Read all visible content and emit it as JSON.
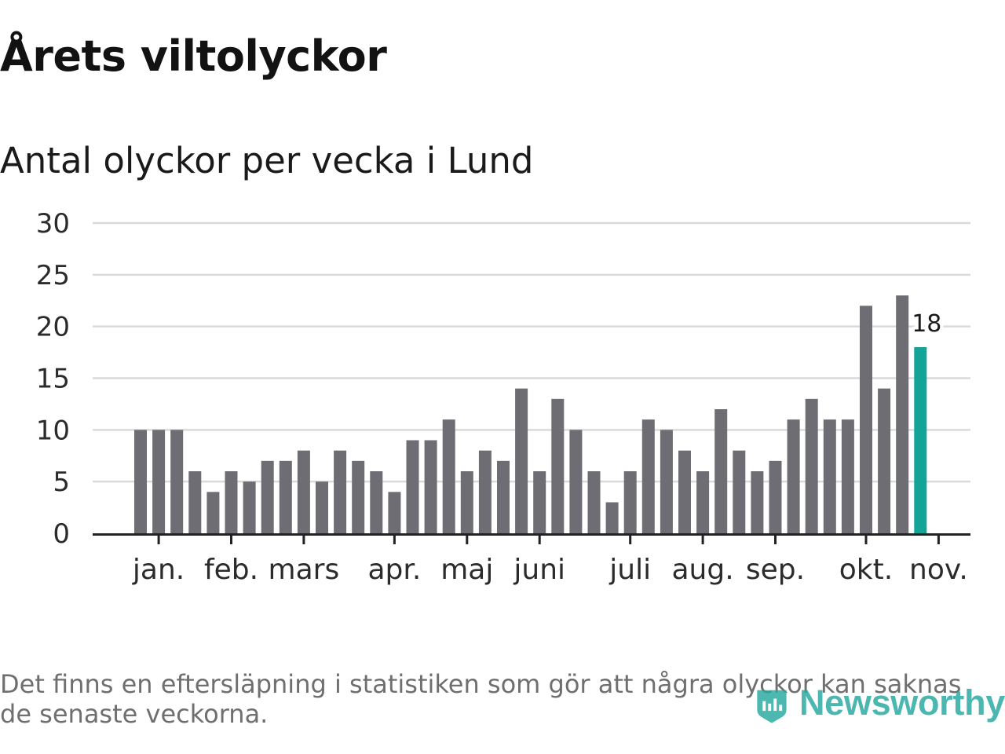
{
  "title": "Årets viltolyckor",
  "subtitle": "Antal olyckor per vecka i Lund",
  "note": "Det finns en eftersläpning i statistiken som gör att några olyckor kan saknas de senaste veckorna.",
  "brand": "Newsworthy",
  "colors": {
    "bar": "#6e6d73",
    "highlight": "#13a397",
    "grid": "#dadada",
    "axis": "#222222",
    "brand": "#26a89f"
  },
  "chart_data": {
    "type": "bar",
    "title": "Årets viltolyckor",
    "subtitle": "Antal olyckor per vecka i Lund",
    "xlabel": "",
    "ylabel": "",
    "ylim": [
      0,
      30
    ],
    "yticks": [
      0,
      5,
      10,
      15,
      20,
      25,
      30
    ],
    "month_labels": [
      "jan.",
      "feb.",
      "mars",
      "apr.",
      "maj",
      "juni",
      "juli",
      "aug.",
      "sep.",
      "okt.",
      "nov."
    ],
    "month_label_weeks": [
      1,
      5,
      9,
      14,
      18,
      22,
      27,
      31,
      35,
      40,
      44
    ],
    "values": [
      10,
      10,
      10,
      6,
      4,
      6,
      5,
      7,
      7,
      8,
      5,
      8,
      7,
      6,
      4,
      9,
      9,
      11,
      6,
      8,
      7,
      14,
      6,
      13,
      10,
      6,
      3,
      6,
      11,
      10,
      8,
      6,
      12,
      8,
      6,
      7,
      11,
      13,
      11,
      11,
      22,
      14,
      23,
      18
    ],
    "highlight_index": 43,
    "highlight_label": "18",
    "grid": true
  }
}
